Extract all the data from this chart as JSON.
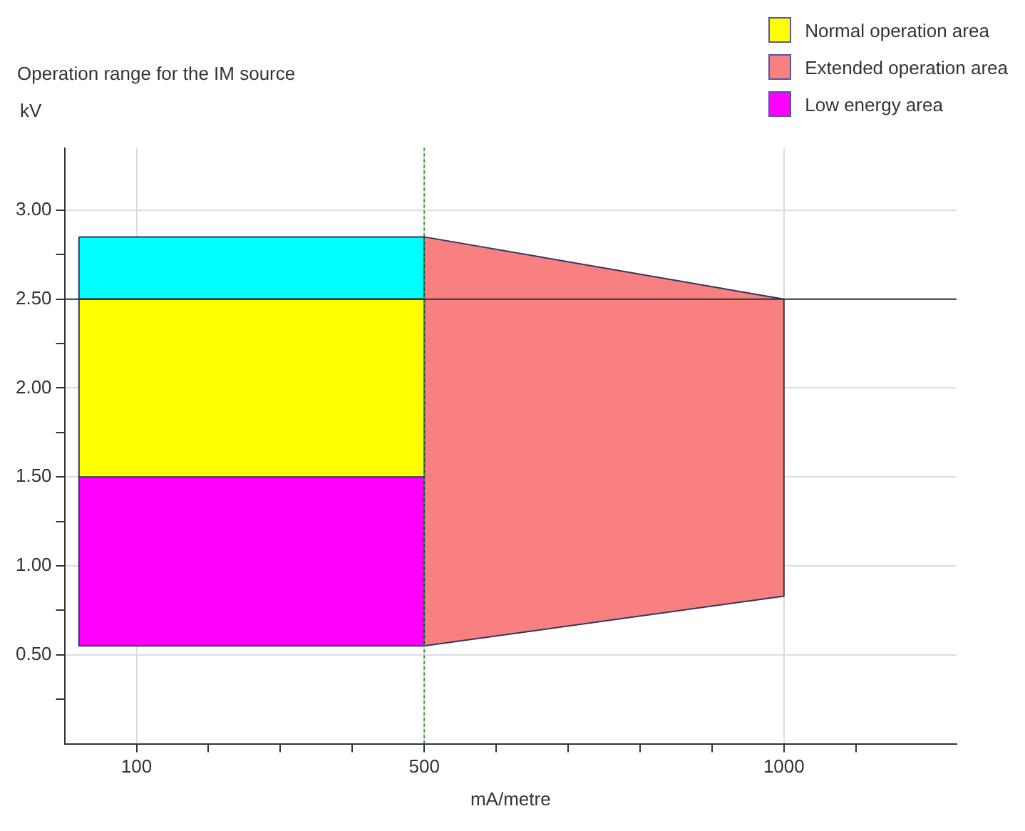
{
  "chart_data": {
    "type": "area",
    "title": "Operation range for the IM source",
    "ylabel": "kV",
    "xlabel": "mA/metre",
    "xlim": [
      0,
      1240
    ],
    "ylim": [
      0,
      3.35
    ],
    "xticks": [
      100,
      {
        "value": 200,
        "label": null
      },
      {
        "value": 300,
        "label": null
      },
      {
        "value": 400,
        "label": null
      },
      500,
      {
        "value": 600,
        "label": null
      },
      {
        "value": 700,
        "label": null
      },
      {
        "value": 800,
        "label": null
      },
      {
        "value": 900,
        "label": null
      },
      1000,
      {
        "value": 1100,
        "label": null
      }
    ],
    "yticks": [
      {
        "value": 0.25,
        "label": null
      },
      {
        "value": 0.5,
        "label": "0.50"
      },
      {
        "value": 0.75,
        "label": null
      },
      {
        "value": 1,
        "label": "1.00"
      },
      {
        "value": 1.25,
        "label": null
      },
      {
        "value": 1.5,
        "label": "1.50"
      },
      {
        "value": 1.75,
        "label": null
      },
      {
        "value": 2,
        "label": "2.00"
      },
      {
        "value": 2.25,
        "label": null
      },
      {
        "value": 2.5,
        "label": "2.50"
      },
      {
        "value": 2.75,
        "label": null
      },
      {
        "value": 3,
        "label": "3.00"
      }
    ],
    "grid": true,
    "legend": "top right",
    "ref_lines": [
      {
        "axis": "y",
        "value": 2.5,
        "color": "#333333",
        "line_style": "solid"
      },
      {
        "axis": "x",
        "value": 500,
        "color": "#2e9e2e",
        "line_style": "dotted"
      }
    ],
    "series": [
      {
        "name": "Normal operation area",
        "color": "#ffff00",
        "x": [
          20,
          500,
          500,
          20,
          20
        ],
        "values": [
          2.5,
          2.5,
          1.5,
          1.5,
          2.5
        ]
      },
      {
        "name": "Extended operation area",
        "color": "#f88080",
        "x": [
          500,
          1000,
          1000,
          500,
          500
        ],
        "values": [
          2.85,
          2.5,
          0.83,
          0.55,
          2.85
        ]
      },
      {
        "name": "Low energy area",
        "color": "#ff00ff",
        "x": [
          20,
          500,
          500,
          20,
          20
        ],
        "values": [
          1.5,
          1.5,
          0.55,
          0.55,
          1.5
        ]
      },
      {
        "color": "#00ffff",
        "x": [
          20,
          500,
          500,
          20,
          20
        ],
        "values": [
          2.85,
          2.85,
          2.5,
          2.5,
          2.85
        ]
      }
    ]
  }
}
